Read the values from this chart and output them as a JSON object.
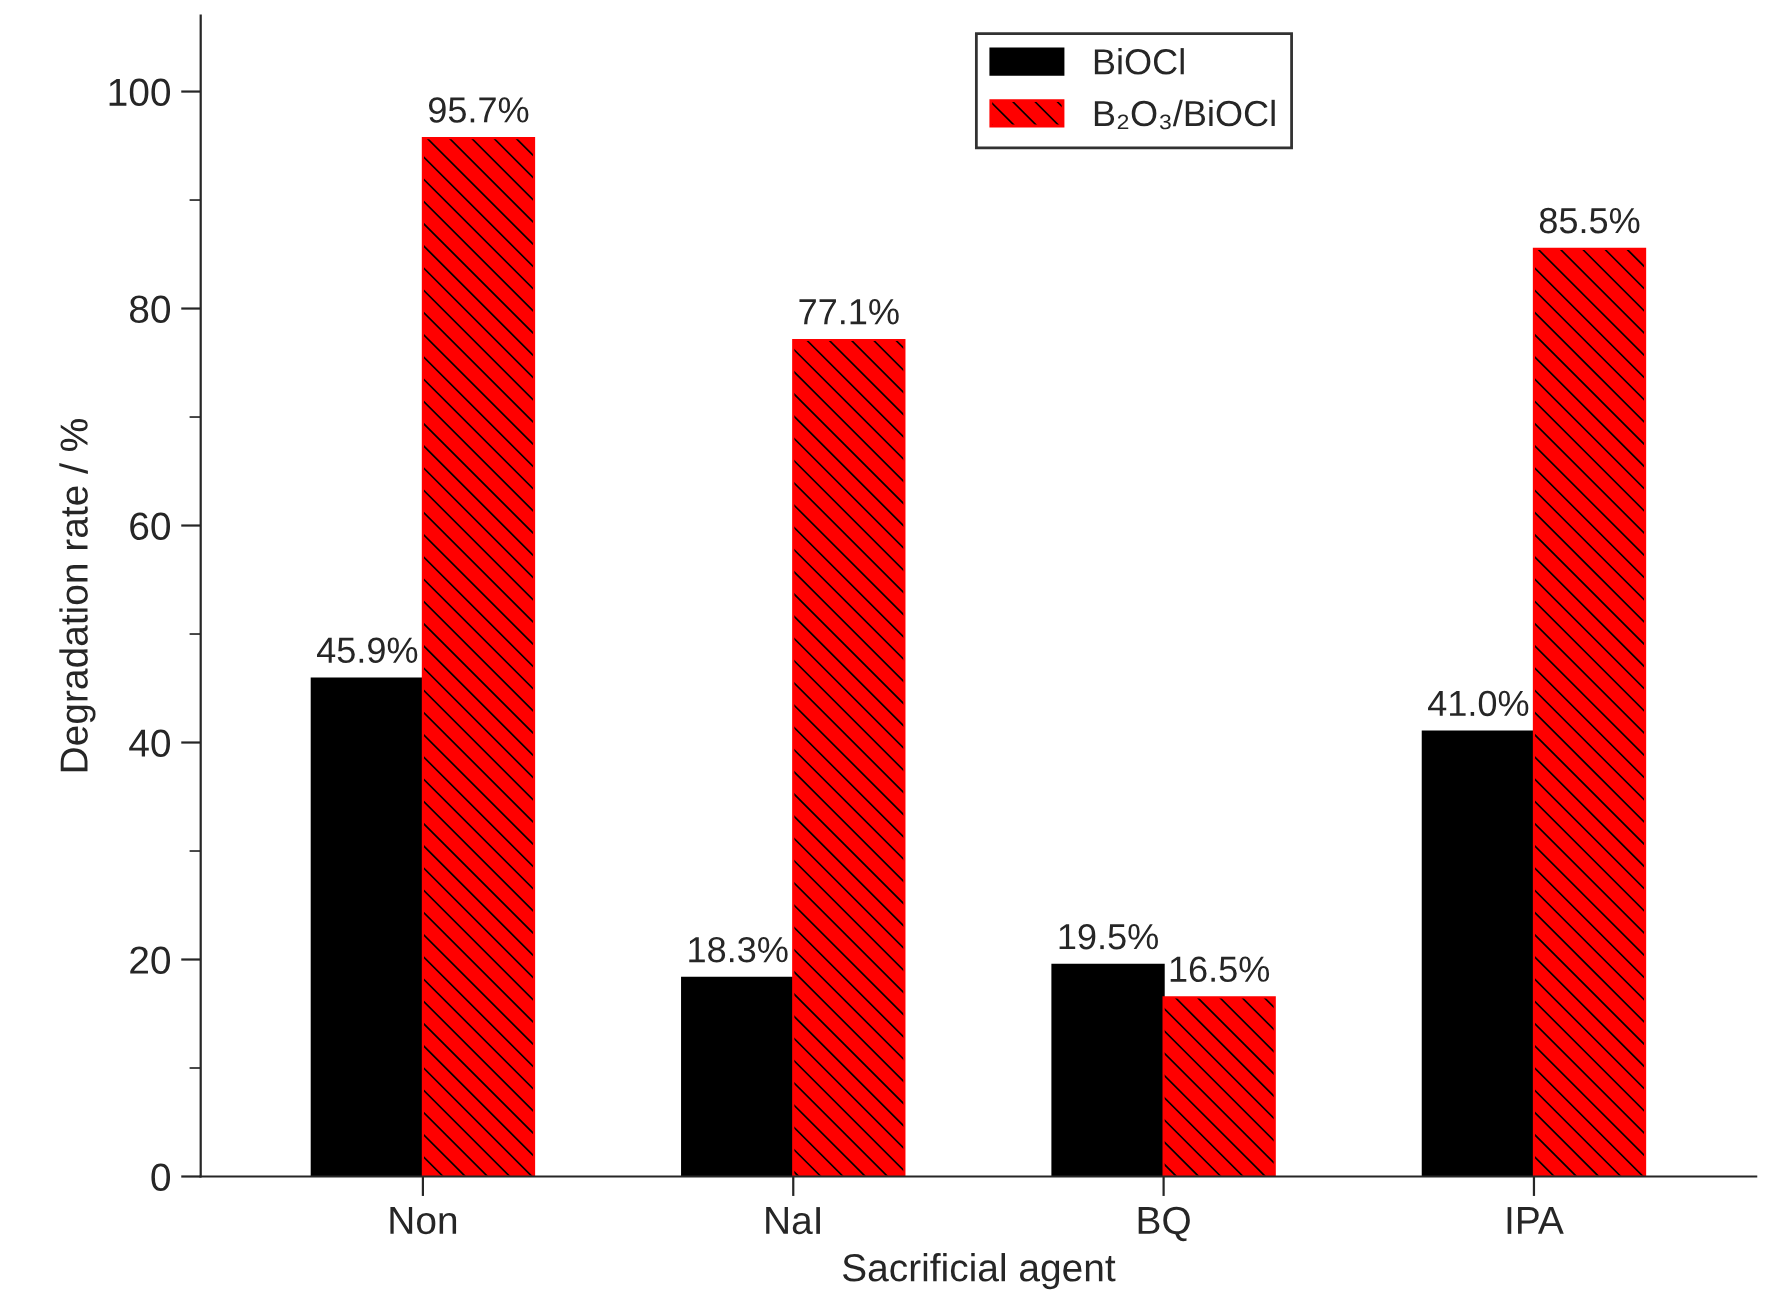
{
  "chart_data": {
    "type": "bar",
    "xlabel": "Sacrificial agent",
    "ylabel": "Degradation rate / %",
    "categories": [
      "Non",
      "NaI",
      "BQ",
      "IPA"
    ],
    "series": [
      {
        "name": "BiOCl",
        "color": "#000000",
        "values": [
          45.9,
          18.3,
          19.5,
          41.0
        ],
        "value_labels": [
          "45.9%",
          "18.3%",
          "19.5%",
          "41.0%"
        ]
      },
      {
        "name": "B₂O₃/BiOCl",
        "color": "#ff0000",
        "values": [
          95.7,
          77.1,
          16.5,
          85.5
        ],
        "value_labels": [
          "95.7%",
          "77.1%",
          "16.5%",
          "85.5%"
        ]
      }
    ],
    "ylim": [
      0,
      107
    ],
    "yticks": [
      0,
      20,
      40,
      60,
      80,
      100
    ],
    "legend": "top"
  }
}
